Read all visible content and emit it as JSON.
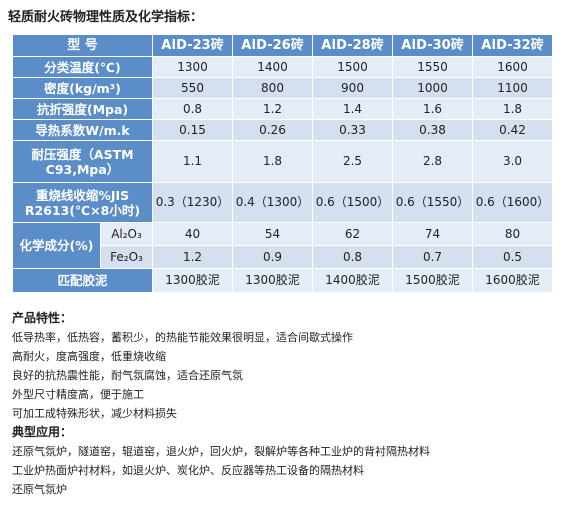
{
  "title": "轻质耐火砖物理性质及化学指标：",
  "table": {
    "header_label": "型  号",
    "models": [
      "AID-23砖",
      "AID-26砖",
      "AID-28砖",
      "AID-30砖",
      "AID-32砖"
    ],
    "rows": [
      {
        "label": "分类温度(℃)",
        "values": [
          "1300",
          "1400",
          "1500",
          "1550",
          "1600"
        ]
      },
      {
        "label": "密度(kg/m³)",
        "values": [
          "550",
          "800",
          "900",
          "1000",
          "1100"
        ]
      },
      {
        "label": "抗折强度(Mpa)",
        "values": [
          "0.8",
          "1.2",
          "1.4",
          "1.6",
          "1.8"
        ]
      },
      {
        "label": "导热系数W/m.k",
        "values": [
          "0.15",
          "0.26",
          "0.33",
          "0.38",
          "0.42"
        ]
      },
      {
        "label": "耐压强度（ASTM C93,Mpa）",
        "values": [
          "1.1",
          "1.8",
          "2.5",
          "2.8",
          "3.0"
        ]
      },
      {
        "label": "重烧线收缩%JIS R2613(℃×8小时)",
        "values": [
          "0.3（1230）",
          "0.4（1300）",
          "0.6（1500）",
          "0.6（1550）",
          "0.6（1600）"
        ]
      }
    ],
    "chem": {
      "label": "化学成分(%)",
      "rows": [
        {
          "label": "Al₂O₃",
          "values": [
            "40",
            "54",
            "62",
            "74",
            "80"
          ]
        },
        {
          "label": "Fe₂O₃",
          "values": [
            "1.2",
            "0.9",
            "0.8",
            "0.7",
            "0.5"
          ]
        }
      ]
    },
    "mortar": {
      "label": "匹配胶泥",
      "values": [
        "1300胶泥",
        "1300胶泥",
        "1400胶泥",
        "1500胶泥",
        "1600胶泥"
      ]
    }
  },
  "features": {
    "heading": "产品特性：",
    "items": [
      "低导热率，低热容，蓄积少，的热能节能效果很明显，适合间歇式操作",
      "高耐火，度高强度，低重烧收缩",
      "良好的抗热震性能，耐气氛腐蚀，适合还原气氛",
      "外型尺寸精度高，便于施工",
      "可加工成特殊形状，减少材料损失"
    ]
  },
  "applications": {
    "heading": "典型应用：",
    "items": [
      "还原气氛炉，隧道窑，辊道窑，退火炉，回火炉，裂解炉等各种工业炉的背衬隔热材料",
      "工业炉热面炉衬材料，如退火炉、炭化炉、反应器等热工设备的隔热材料",
      "还原气氛炉"
    ]
  }
}
